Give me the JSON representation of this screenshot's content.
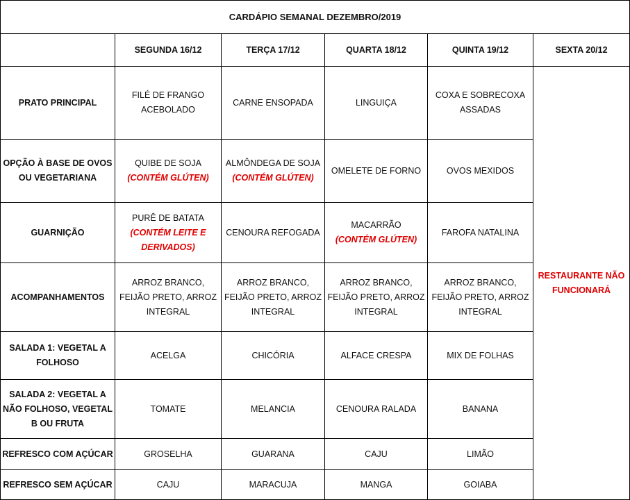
{
  "title": "CARDÁPIO SEMANAL DEZEMBRO/2019",
  "days": [
    "SEGUNDA 16/12",
    "TERÇA 17/12",
    "QUARTA 18/12",
    "QUINTA 19/12",
    "SEXTA 20/12"
  ],
  "friday_notice": "RESTAURANTE NÃO FUNCIONARÁ",
  "colors": {
    "warning": "#e00000"
  },
  "rows": [
    {
      "label": "PRATO PRINCIPAL",
      "cells": [
        {
          "text": "FILÉ DE FRANGO ACEBOLADO"
        },
        {
          "text": "CARNE ENSOPADA"
        },
        {
          "text": "LINGUIÇA"
        },
        {
          "text": "COXA E SOBRECOXA ASSADAS"
        }
      ]
    },
    {
      "label": "OPÇÃO À BASE DE OVOS OU VEGETARIANA",
      "cells": [
        {
          "text": "QUIBE DE  SOJA",
          "note": "(CONTÉM GLÚTEN)"
        },
        {
          "text": "ALMÔNDEGA DE SOJA",
          "note": "(CONTÉM GLÚTEN)"
        },
        {
          "text": "OMELETE DE FORNO"
        },
        {
          "text": "OVOS MEXIDOS"
        }
      ]
    },
    {
      "label": "GUARNIÇÃO",
      "cells": [
        {
          "text": "PURÊ DE BATATA",
          "note": "(CONTÉM LEITE E DERIVADOS)"
        },
        {
          "text": "CENOURA REFOGADA"
        },
        {
          "text": "MACARRÃO",
          "note": "(CONTÉM GLÚTEN)"
        },
        {
          "text": "FAROFA NATALINA"
        }
      ]
    },
    {
      "label": "ACOMPANHAMENTOS",
      "cells": [
        {
          "text": "ARROZ BRANCO, FEIJÃO PRETO, ARROZ INTEGRAL"
        },
        {
          "text": "ARROZ BRANCO, FEIJÃO PRETO, ARROZ INTEGRAL"
        },
        {
          "text": "ARROZ BRANCO, FEIJÃO PRETO, ARROZ INTEGRAL"
        },
        {
          "text": "ARROZ BRANCO, FEIJÃO PRETO, ARROZ INTEGRAL"
        }
      ]
    },
    {
      "label": "SALADA 1: VEGETAL A FOLHOSO",
      "cells": [
        {
          "text": "ACELGA"
        },
        {
          "text": "CHICÓRIA"
        },
        {
          "text": "ALFACE CRESPA"
        },
        {
          "text": "MIX DE FOLHAS"
        }
      ]
    },
    {
      "label": "SALADA 2: VEGETAL A NÃO FOLHOSO, VEGETAL B OU FRUTA",
      "cells": [
        {
          "text": "TOMATE"
        },
        {
          "text": "MELANCIA"
        },
        {
          "text": "CENOURA RALADA"
        },
        {
          "text": "BANANA"
        }
      ]
    },
    {
      "label": "REFRESCO COM AÇÚCAR",
      "cells": [
        {
          "text": "GROSELHA"
        },
        {
          "text": "GUARANA"
        },
        {
          "text": "CAJU"
        },
        {
          "text": "LIMÃO"
        }
      ]
    },
    {
      "label": "REFRESCO SEM AÇÚCAR",
      "cells": [
        {
          "text": "CAJU"
        },
        {
          "text": "MARACUJA"
        },
        {
          "text": "MANGA"
        },
        {
          "text": "GOIABA"
        }
      ]
    }
  ]
}
